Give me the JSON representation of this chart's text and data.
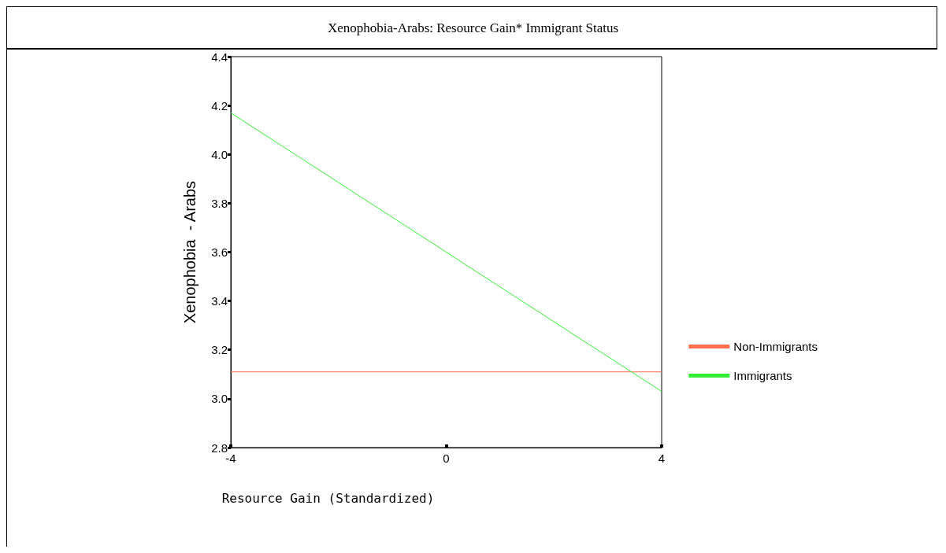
{
  "chart_data": {
    "type": "line",
    "title": "Xenophobia-Arabs: Resource Gain* Immigrant Status",
    "xlabel": "Resource Gain (Standardized)",
    "ylabel": "Xenophobia  - Arabs",
    "x": [
      -4,
      4
    ],
    "series": [
      {
        "name": "Non-Immigrants",
        "color": "#ff6f4f",
        "values": [
          3.11,
          3.11
        ]
      },
      {
        "name": "Immigrants",
        "color": "#33ee33",
        "values": [
          4.17,
          3.03
        ]
      }
    ],
    "xlim": [
      -4,
      4
    ],
    "xticks": [
      -4,
      0,
      4
    ],
    "ylim": [
      2.8,
      4.4
    ],
    "yticks": [
      2.8,
      {
        "value": 3,
        "label": "3.0"
      },
      3.2,
      3.4,
      3.6,
      3.8,
      {
        "value": 4,
        "label": "4.0"
      },
      4.2,
      4.4
    ],
    "grid": false,
    "legend": "right",
    "marker": "none",
    "line_style": "solid"
  }
}
